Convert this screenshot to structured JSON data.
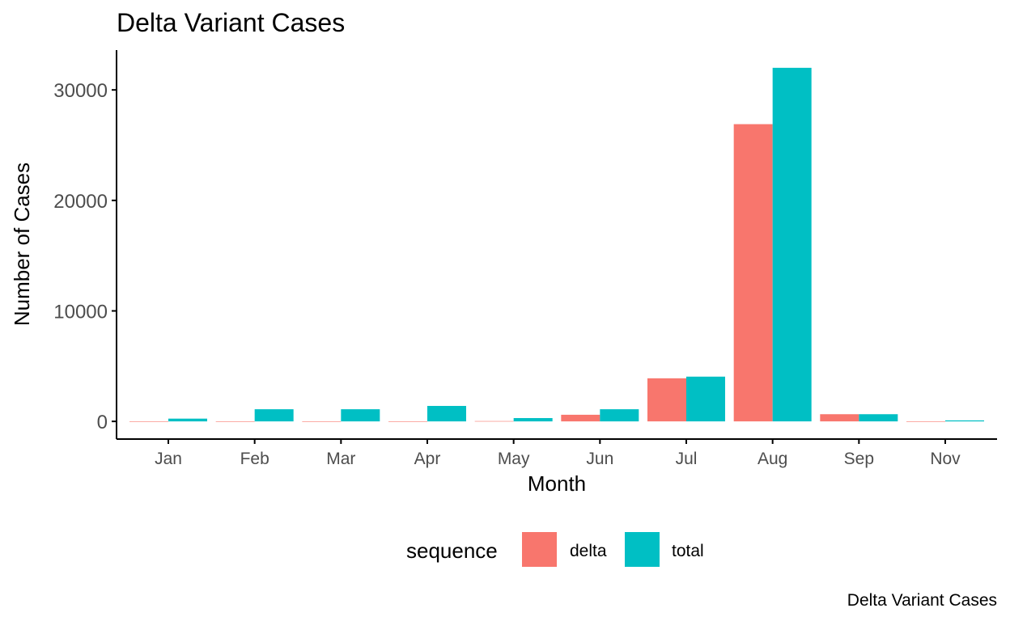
{
  "chart_data": {
    "type": "bar",
    "title": "Delta Variant Cases",
    "xlabel": "Month",
    "ylabel": "Number of Cases",
    "caption": "Delta Variant Cases",
    "categories": [
      "Jan",
      "Feb",
      "Mar",
      "Apr",
      "May",
      "Jun",
      "Jul",
      "Aug",
      "Sep",
      "Nov"
    ],
    "series": [
      {
        "name": "delta",
        "color": "#F8766D",
        "values": [
          0,
          0,
          0,
          0,
          30,
          600,
          3900,
          26900,
          650,
          0
        ]
      },
      {
        "name": "total",
        "color": "#00BFC4",
        "values": [
          250,
          1100,
          1100,
          1400,
          300,
          1100,
          4050,
          32000,
          650,
          90
        ]
      }
    ],
    "yticks": [
      0,
      10000,
      20000,
      30000
    ],
    "ylim": [
      -1600,
      33600
    ],
    "grid": false,
    "legend": {
      "title": "sequence",
      "position": "bottom"
    }
  }
}
